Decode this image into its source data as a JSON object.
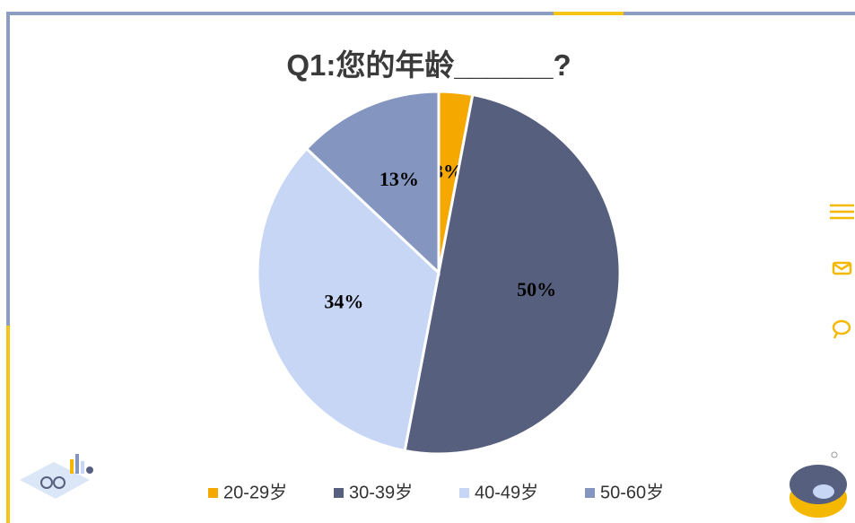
{
  "chart_data": {
    "type": "pie",
    "title": "Q1:您的年龄______?",
    "categories": [
      "20-29岁",
      "30-39岁",
      "40-49岁",
      "50-60岁"
    ],
    "values": [
      3,
      50,
      34,
      13
    ],
    "value_labels": [
      "3%",
      "50%",
      "34%",
      "13%"
    ],
    "colors": [
      "#f5a900",
      "#56607e",
      "#c6d6f4",
      "#8496bf"
    ],
    "legend": "bottom"
  }
}
